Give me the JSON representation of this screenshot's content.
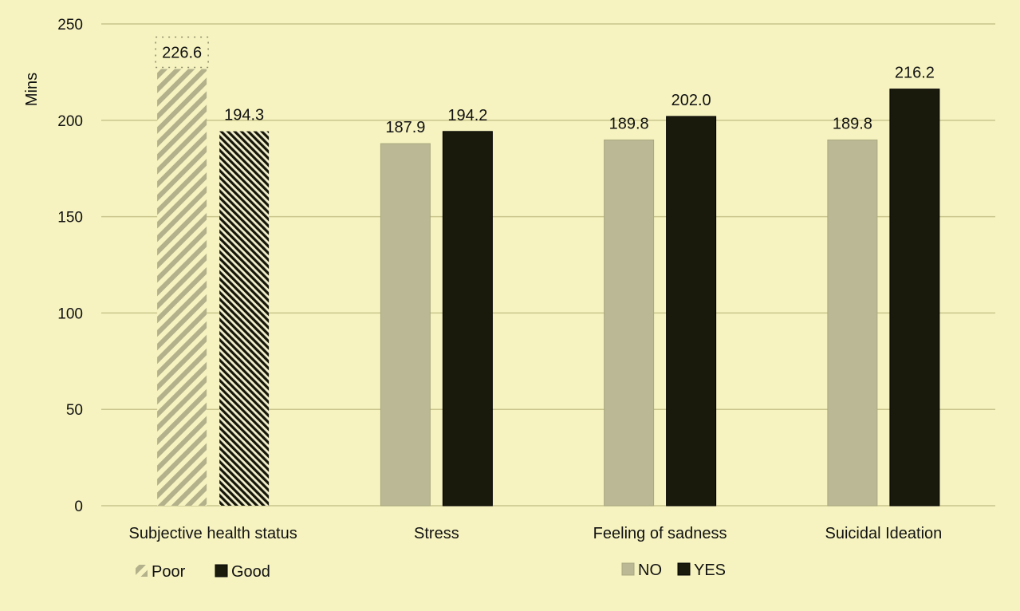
{
  "chart_data": {
    "type": "bar",
    "title": "",
    "xlabel": "",
    "ylabel": "Mins",
    "ylim": [
      0,
      250
    ],
    "yticks": [
      0,
      50,
      100,
      150,
      200,
      250
    ],
    "grid": true,
    "categories": [
      "Subjective health status",
      "Stress",
      "Feeling of sadness",
      "Suicidal Ideation"
    ],
    "groups": [
      {
        "category": "Subjective health status",
        "bars": [
          {
            "label": "Poor",
            "value": 226.6,
            "display": "226.6",
            "style": "hatch-light"
          },
          {
            "label": "Good",
            "value": 194.3,
            "display": "194.3",
            "style": "hatch-dark"
          }
        ]
      },
      {
        "category": "Stress",
        "bars": [
          {
            "label": "NO",
            "value": 187.9,
            "display": "187.9",
            "style": "solid-light"
          },
          {
            "label": "YES",
            "value": 194.2,
            "display": "194.2",
            "style": "solid-dark"
          }
        ]
      },
      {
        "category": "Feeling of sadness",
        "bars": [
          {
            "label": "NO",
            "value": 189.8,
            "display": "189.8",
            "style": "solid-light"
          },
          {
            "label": "YES",
            "value": 202.0,
            "display": "202.0",
            "style": "solid-dark"
          }
        ]
      },
      {
        "category": "Suicidal Ideation",
        "bars": [
          {
            "label": "NO",
            "value": 189.8,
            "display": "189.8",
            "style": "solid-light"
          },
          {
            "label": "YES",
            "value": 216.2,
            "display": "216.2",
            "style": "solid-dark"
          }
        ]
      }
    ],
    "legends": [
      {
        "items": [
          {
            "label": "Poor",
            "style": "hatch-light"
          },
          {
            "label": "Good",
            "style": "solid-dark"
          }
        ]
      },
      {
        "items": [
          {
            "label": "NO",
            "style": "solid-light"
          },
          {
            "label": "YES",
            "style": "solid-dark"
          }
        ]
      }
    ]
  },
  "colors": {
    "background": "#f6f3c0",
    "light_bar": "#bbb995",
    "dark_bar": "#1a1a0c",
    "grid": "#c9c58d"
  }
}
